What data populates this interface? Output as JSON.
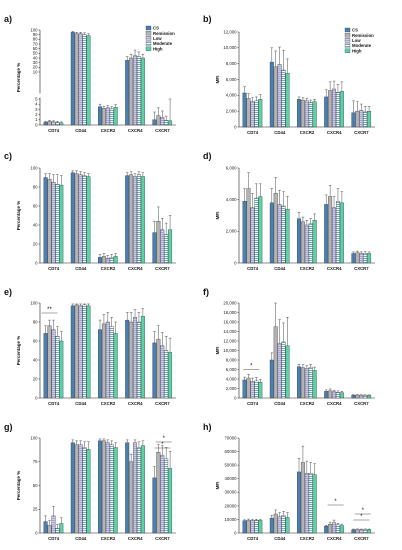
{
  "colors": {
    "CS": "#4a7fb2",
    "Remission": "#b3b3b3",
    "Low": "#c3c1e0",
    "Moderate": "#5fb7c9",
    "High": "#5ad1a6"
  },
  "chart_data": [
    {
      "id": "a",
      "panel_label": "a)",
      "type": "bar",
      "ylabel": "Percentage %",
      "yticks": [
        "0",
        "1",
        "2",
        "3",
        "4",
        "5",
        "10",
        "20",
        "30",
        "40",
        "50",
        "60",
        "70",
        "80",
        "90",
        "100"
      ],
      "categories": [
        "CD74",
        "CD44",
        "CXCR2",
        "CXCR4",
        "CXCR7"
      ],
      "legend": [
        "CS",
        "Remission",
        "Low",
        "Moderate",
        "High"
      ],
      "series": [
        {
          "name": "CS",
          "values": [
            0.5,
            95,
            3.5,
            35,
            1.0
          ],
          "errors": [
            0.2,
            2,
            0.5,
            8,
            1.5
          ]
        },
        {
          "name": "Remission",
          "values": [
            0.7,
            92,
            3.2,
            40,
            1.8
          ],
          "errors": [
            0.2,
            3,
            0.4,
            8,
            1.5
          ]
        },
        {
          "name": "Low",
          "values": [
            0.6,
            92,
            3.3,
            45,
            1.5
          ],
          "errors": [
            0.2,
            3,
            0.4,
            12,
            1.2
          ]
        },
        {
          "name": "Moderate",
          "values": [
            0.5,
            90,
            3.1,
            43,
            0.9
          ],
          "errors": [
            0.2,
            4,
            0.4,
            10,
            0.8
          ]
        },
        {
          "name": "High",
          "values": [
            0.4,
            88,
            3.4,
            40,
            0.8
          ],
          "errors": [
            0.2,
            4,
            0.5,
            8,
            4.2
          ]
        }
      ]
    },
    {
      "id": "b",
      "panel_label": "b)",
      "type": "bar",
      "ylabel": "MFI",
      "yticks": [
        "0",
        "2,000",
        "4,000",
        "6,000",
        "8,000",
        "10,000",
        "12,000"
      ],
      "ylim": [
        0,
        12000
      ],
      "categories": [
        "CD74",
        "CD44",
        "CXCR2",
        "CXCR4",
        "CXCR7"
      ],
      "legend": [
        "CS",
        "Remission",
        "Low",
        "Moderate",
        "High"
      ],
      "series": [
        {
          "name": "CS",
          "values": [
            4300,
            8200,
            3500,
            3800,
            1800
          ],
          "errors": [
            800,
            1800,
            300,
            900,
            1500
          ]
        },
        {
          "name": "Remission",
          "values": [
            3600,
            7600,
            3400,
            4600,
            2000
          ],
          "errors": [
            600,
            2000,
            300,
            1100,
            1200
          ]
        },
        {
          "name": "Low",
          "values": [
            3200,
            7900,
            3300,
            4800,
            2100
          ],
          "errors": [
            500,
            2200,
            300,
            1000,
            800
          ]
        },
        {
          "name": "Moderate",
          "values": [
            3300,
            7200,
            3100,
            4400,
            1900
          ],
          "errors": [
            500,
            2500,
            300,
            1000,
            700
          ]
        },
        {
          "name": "High",
          "values": [
            3500,
            6800,
            3200,
            4500,
            2000
          ],
          "errors": [
            600,
            1800,
            300,
            1200,
            600
          ]
        }
      ]
    },
    {
      "id": "c",
      "panel_label": "c)",
      "type": "bar",
      "ylabel": "Percentage %",
      "yticks": [
        "0",
        "20",
        "40",
        "60",
        "80",
        "100"
      ],
      "ylim": [
        0,
        100
      ],
      "categories": [
        "CD74",
        "CD44",
        "CXCR2",
        "CXCR4",
        "CXCR7"
      ],
      "series": [
        {
          "name": "CS",
          "values": [
            90,
            95,
            6,
            92,
            32
          ],
          "errors": [
            4,
            2,
            3,
            3,
            12
          ]
        },
        {
          "name": "Remission",
          "values": [
            88,
            94,
            7,
            93,
            44
          ],
          "errors": [
            6,
            3,
            3,
            3,
            15
          ]
        },
        {
          "name": "Low",
          "values": [
            85,
            93,
            5,
            91,
            35
          ],
          "errors": [
            8,
            3,
            3,
            3,
            12
          ]
        },
        {
          "name": "Moderate",
          "values": [
            83,
            92,
            6,
            93,
            30
          ],
          "errors": [
            10,
            3,
            3,
            3,
            12
          ]
        },
        {
          "name": "High",
          "values": [
            82,
            91,
            7,
            91,
            35
          ],
          "errors": [
            10,
            3,
            3,
            4,
            15
          ]
        }
      ]
    },
    {
      "id": "d",
      "panel_label": "d)",
      "type": "bar",
      "ylabel": "MFI",
      "yticks": [
        "0",
        "2,000",
        "4,000",
        "6,000"
      ],
      "ylim": [
        0,
        6000
      ],
      "categories": [
        "CD74",
        "CD44",
        "CXCR2",
        "CXCR4",
        "CXCR7"
      ],
      "series": [
        {
          "name": "CS",
          "values": [
            3900,
            3800,
            2800,
            3700,
            600
          ],
          "errors": [
            800,
            900,
            400,
            600,
            100
          ]
        },
        {
          "name": "Remission",
          "values": [
            4700,
            4400,
            2600,
            4200,
            650
          ],
          "errors": [
            1000,
            1000,
            300,
            700,
            100
          ]
        },
        {
          "name": "Low",
          "values": [
            3500,
            3700,
            2400,
            3500,
            600
          ],
          "errors": [
            900,
            900,
            300,
            700,
            100
          ]
        },
        {
          "name": "Moderate",
          "values": [
            4100,
            3600,
            2500,
            3900,
            620
          ],
          "errors": [
            900,
            900,
            300,
            800,
            100
          ]
        },
        {
          "name": "High",
          "values": [
            4200,
            3400,
            2700,
            3800,
            600
          ],
          "errors": [
            800,
            800,
            400,
            700,
            100
          ]
        }
      ]
    },
    {
      "id": "e",
      "panel_label": "e)",
      "type": "bar",
      "ylabel": "Percentage %",
      "yticks": [
        "0",
        "20",
        "40",
        "60",
        "80",
        "100"
      ],
      "ylim": [
        0,
        100
      ],
      "categories": [
        "CD74",
        "CD44",
        "CXCR2",
        "CXCR4",
        "CXCR7"
      ],
      "annotations": [
        "**"
      ],
      "series": [
        {
          "name": "CS",
          "values": [
            68,
            97,
            72,
            82,
            58
          ],
          "errors": [
            8,
            2,
            10,
            8,
            12
          ]
        },
        {
          "name": "Remission",
          "values": [
            76,
            98,
            78,
            80,
            62
          ],
          "errors": [
            6,
            1,
            10,
            10,
            14
          ]
        },
        {
          "name": "Low",
          "values": [
            72,
            97,
            80,
            85,
            55
          ],
          "errors": [
            10,
            2,
            10,
            8,
            14
          ]
        },
        {
          "name": "Moderate",
          "values": [
            65,
            98,
            75,
            80,
            50
          ],
          "errors": [
            10,
            1,
            10,
            10,
            15
          ]
        },
        {
          "name": "High",
          "values": [
            60,
            97,
            68,
            86,
            48
          ],
          "errors": [
            10,
            2,
            12,
            8,
            15
          ]
        }
      ]
    },
    {
      "id": "f",
      "panel_label": "f)",
      "type": "bar",
      "ylabel": "MFI",
      "yticks": [
        "0",
        "2,000",
        "4,000",
        "6,000",
        "8,000",
        "10,000",
        "12,000",
        "14,000",
        "16,000",
        "18,000",
        "20,000"
      ],
      "ylim": [
        0,
        20000
      ],
      "categories": [
        "CD74",
        "CD44",
        "CXCR2",
        "CXCR4",
        "CXCR7"
      ],
      "annotations": [
        "*"
      ],
      "series": [
        {
          "name": "CS",
          "values": [
            3800,
            8000,
            6600,
            1400,
            600
          ],
          "errors": [
            600,
            1500,
            500,
            300,
            100
          ]
        },
        {
          "name": "Remission",
          "values": [
            4200,
            15000,
            6400,
            1500,
            620
          ],
          "errors": [
            800,
            5000,
            600,
            400,
            100
          ]
        },
        {
          "name": "Low",
          "values": [
            3500,
            11500,
            6200,
            1300,
            600
          ],
          "errors": [
            700,
            5000,
            600,
            300,
            100
          ]
        },
        {
          "name": "Moderate",
          "values": [
            3600,
            11800,
            6500,
            1200,
            580
          ],
          "errors": [
            700,
            4000,
            600,
            300,
            100
          ]
        },
        {
          "name": "High",
          "values": [
            3300,
            11000,
            5800,
            1100,
            560
          ],
          "errors": [
            600,
            6000,
            700,
            300,
            100
          ]
        }
      ]
    },
    {
      "id": "g",
      "panel_label": "g)",
      "type": "bar",
      "ylabel": "Percentage %",
      "yticks": [
        "0",
        "25",
        "50",
        "75",
        "100"
      ],
      "ylim": [
        0,
        100
      ],
      "categories": [
        "CD74",
        "CD44",
        "CXCR2",
        "CXCR4",
        "CXCR7"
      ],
      "annotations": [
        "*",
        "*"
      ],
      "series": [
        {
          "name": "CS",
          "values": [
            12,
            95,
            97,
            95,
            58
          ],
          "errors": [
            6,
            3,
            2,
            3,
            12
          ]
        },
        {
          "name": "Remission",
          "values": [
            8,
            93,
            97,
            75,
            85
          ],
          "errors": [
            5,
            4,
            2,
            8,
            8
          ]
        },
        {
          "name": "Low",
          "values": [
            18,
            93,
            95,
            95,
            82
          ],
          "errors": [
            10,
            4,
            3,
            3,
            10
          ]
        },
        {
          "name": "Moderate",
          "values": [
            5,
            90,
            93,
            90,
            78
          ],
          "errors": [
            4,
            6,
            4,
            6,
            12
          ]
        },
        {
          "name": "High",
          "values": [
            10,
            88,
            90,
            92,
            68
          ],
          "errors": [
            6,
            8,
            5,
            5,
            18
          ]
        }
      ]
    },
    {
      "id": "h",
      "panel_label": "h)",
      "type": "bar",
      "ylabel": "MFI",
      "yticks": [
        "0",
        "10000",
        "20000",
        "30000",
        "40000",
        "50000",
        "60000",
        "70000"
      ],
      "ylim": [
        0,
        70000
      ],
      "categories": [
        "CD74",
        "CD44",
        "CXCR2",
        "CXCR4",
        "CXCR7"
      ],
      "annotations": [
        "*",
        "*",
        "*"
      ],
      "series": [
        {
          "name": "CS",
          "values": [
            9000,
            11000,
            45000,
            5000,
            2500
          ],
          "errors": [
            700,
            2000,
            10000,
            700,
            400
          ]
        },
        {
          "name": "Remission",
          "values": [
            9500,
            14000,
            52000,
            6500,
            2600
          ],
          "errors": [
            800,
            3000,
            12000,
            1500,
            400
          ]
        },
        {
          "name": "Low",
          "values": [
            9200,
            12000,
            44000,
            7500,
            2500
          ],
          "errors": [
            700,
            3000,
            9000,
            2000,
            400
          ]
        },
        {
          "name": "Moderate",
          "values": [
            9400,
            13000,
            44000,
            6000,
            2600
          ],
          "errors": [
            700,
            3000,
            8000,
            1200,
            400
          ]
        },
        {
          "name": "High",
          "values": [
            9300,
            11500,
            43000,
            5500,
            2500
          ],
          "errors": [
            700,
            3500,
            8000,
            1000,
            400
          ]
        }
      ]
    }
  ]
}
